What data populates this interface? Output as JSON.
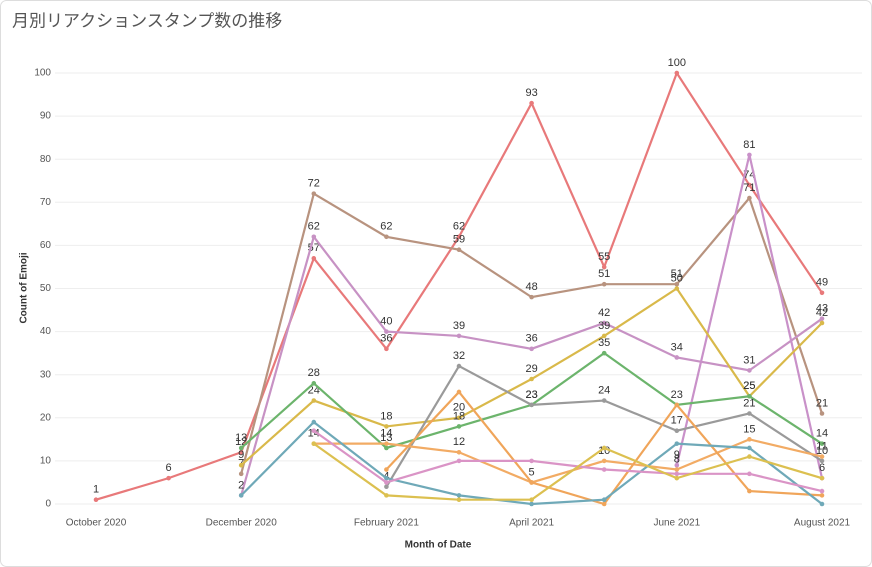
{
  "chart_data": {
    "type": "line",
    "title": "月別リアクションスタンプ数の推移",
    "x_label": "Month of Date",
    "y_label": "Count of Emoji",
    "categories": [
      "October 2020",
      null,
      "December 2020",
      null,
      "February 2021",
      null,
      "April 2021",
      null,
      "June 2021",
      null,
      "August 2021"
    ],
    "ylim": [
      0,
      100
    ],
    "yticks": [
      0,
      10,
      20,
      30,
      40,
      50,
      60,
      70,
      80,
      90,
      100
    ],
    "grid": true,
    "series": [
      {
        "color": "#e8797a",
        "labels": true,
        "values": [
          1,
          6,
          12,
          57,
          36,
          62,
          93,
          55,
          100,
          74,
          49
        ]
      },
      {
        "color": "#b8937f",
        "labels": true,
        "values": [
          null,
          null,
          7,
          72,
          62,
          59,
          48,
          51,
          51,
          71,
          21
        ]
      },
      {
        "color": "#c792c4",
        "labels": true,
        "values": [
          null,
          null,
          2,
          62,
          40,
          39,
          36,
          42,
          34,
          31,
          43
        ]
      },
      {
        "color": "#c991c9",
        "labels": true,
        "values": [
          null,
          null,
          null,
          null,
          null,
          null,
          null,
          null,
          9,
          81,
          6
        ]
      },
      {
        "color": "#d9b94a",
        "labels": true,
        "values": [
          null,
          null,
          9,
          24,
          18,
          20,
          29,
          39,
          50,
          25,
          42
        ]
      },
      {
        "color": "#6cb46c",
        "labels": true,
        "values": [
          null,
          null,
          13,
          28,
          13,
          18,
          23,
          35,
          23,
          25,
          14
        ]
      },
      {
        "color": "#9a9a9a",
        "labels": true,
        "values": [
          null,
          null,
          null,
          null,
          4,
          32,
          23,
          24,
          17,
          21,
          10
        ]
      },
      {
        "color": "#f2ab64",
        "labels": true,
        "values": [
          null,
          null,
          null,
          14,
          14,
          12,
          5,
          10,
          8,
          15,
          11
        ]
      },
      {
        "color": "#f0a55a",
        "labels": false,
        "values": [
          null,
          null,
          null,
          null,
          8,
          26,
          5,
          0,
          23,
          3,
          2
        ]
      },
      {
        "color": "#6fa9b8",
        "labels": false,
        "values": [
          null,
          null,
          2,
          19,
          6,
          2,
          0,
          1,
          14,
          13,
          0
        ]
      },
      {
        "color": "#da94c6",
        "labels": false,
        "values": [
          null,
          null,
          null,
          17,
          5,
          10,
          10,
          8,
          7,
          7,
          3
        ]
      },
      {
        "color": "#dcc050",
        "labels": false,
        "values": [
          null,
          null,
          null,
          14,
          2,
          1,
          1,
          13,
          6,
          11,
          6
        ]
      }
    ]
  }
}
